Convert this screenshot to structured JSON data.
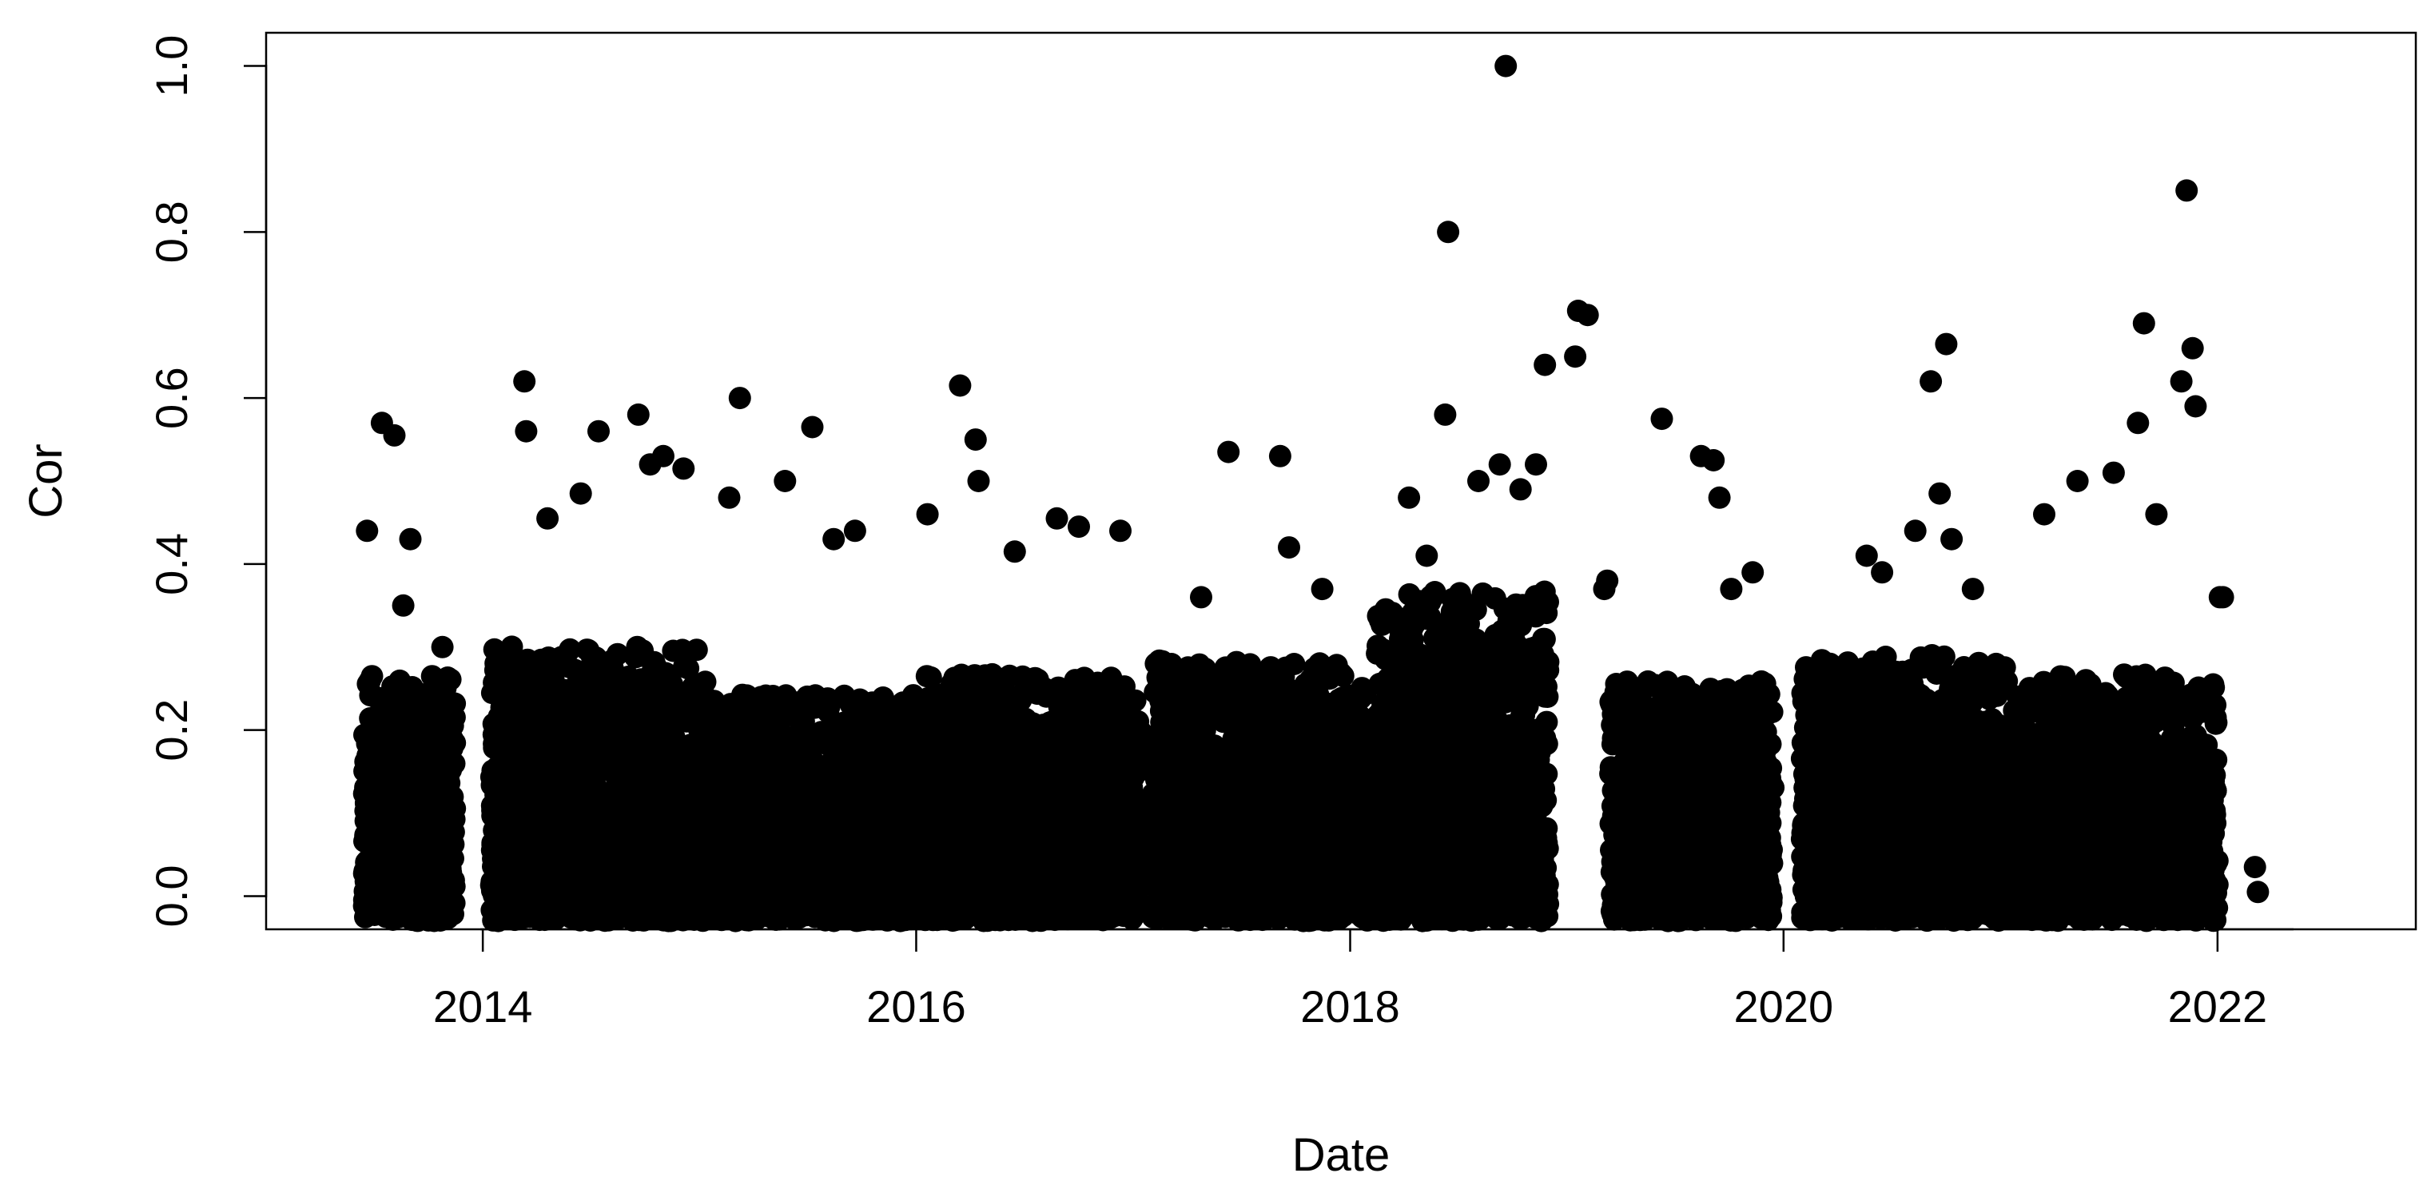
{
  "chart_data": {
    "type": "scatter",
    "title": "",
    "xlabel": "Date",
    "ylabel": "Cor",
    "x_axis_type": "date",
    "xlim": [
      "2013-01-01",
      "2022-12-01"
    ],
    "ylim": [
      -0.04,
      1.04
    ],
    "x_ticks": [
      "2014-01-01",
      "2016-01-01",
      "2018-01-01",
      "2020-01-01",
      "2022-01-01"
    ],
    "x_tick_labels": [
      "2014",
      "2016",
      "2018",
      "2020",
      "2022"
    ],
    "y_ticks": [
      0.0,
      0.2,
      0.4,
      0.6,
      0.8,
      1.0
    ],
    "y_tick_labels": [
      "0.0",
      "0.2",
      "0.4",
      "0.6",
      "0.8",
      "1.0"
    ],
    "grid": false,
    "legend": "none",
    "marker": "filled-circle",
    "color": "#000000",
    "series": [
      {
        "x": [
          "2013-07-15",
          "2013-08-05",
          "2013-08-20",
          "2013-09-01",
          "2013-06-20",
          "2013-10-25",
          "2014-03-12",
          "2014-03-15",
          "2014-04-20",
          "2014-06-15",
          "2014-07-15",
          "2014-09-20",
          "2014-10-10",
          "2014-11-01",
          "2014-12-05",
          "2015-02-20",
          "2015-03-10",
          "2015-05-25",
          "2015-07-10",
          "2015-08-15",
          "2015-09-20",
          "2016-01-20",
          "2016-03-15",
          "2016-04-10",
          "2016-04-15",
          "2016-06-15",
          "2016-08-25",
          "2016-10-01",
          "2016-12-10",
          "2017-04-25",
          "2017-06-10",
          "2017-09-05",
          "2017-09-20",
          "2017-11-15",
          "2018-04-10",
          "2018-05-10",
          "2018-06-10",
          "2018-06-15",
          "2018-08-05",
          "2018-09-10",
          "2018-09-20",
          "2018-10-15",
          "2018-11-10",
          "2018-11-25",
          "2019-01-15",
          "2019-01-20",
          "2019-02-05",
          "2019-03-05",
          "2019-03-10",
          "2019-06-10",
          "2019-08-15",
          "2019-09-05",
          "2019-09-15",
          "2019-10-05",
          "2019-11-10",
          "2020-05-20",
          "2020-06-15",
          "2020-08-10",
          "2020-09-05",
          "2020-09-20",
          "2020-10-01",
          "2020-10-10",
          "2020-11-15",
          "2021-03-15",
          "2021-05-10",
          "2021-07-10",
          "2021-08-20",
          "2021-08-30",
          "2021-09-20",
          "2021-11-01",
          "2021-11-10",
          "2021-11-20",
          "2021-11-25",
          "2022-01-05",
          "2022-01-10",
          "2022-03-05",
          "2022-03-10"
        ],
        "y": [
          0.57,
          0.555,
          0.35,
          0.43,
          0.44,
          0.3,
          0.62,
          0.56,
          0.455,
          0.485,
          0.56,
          0.58,
          0.52,
          0.53,
          0.515,
          0.48,
          0.6,
          0.5,
          0.565,
          0.43,
          0.44,
          0.46,
          0.615,
          0.55,
          0.5,
          0.415,
          0.455,
          0.445,
          0.44,
          0.36,
          0.535,
          0.53,
          0.42,
          0.37,
          0.48,
          0.41,
          0.58,
          0.8,
          0.5,
          0.52,
          1.0,
          0.49,
          0.52,
          0.64,
          0.65,
          0.705,
          0.7,
          0.37,
          0.38,
          0.575,
          0.53,
          0.525,
          0.48,
          0.37,
          0.39,
          0.41,
          0.39,
          0.44,
          0.62,
          0.485,
          0.665,
          0.43,
          0.37,
          0.46,
          0.5,
          0.51,
          0.57,
          0.69,
          0.46,
          0.62,
          0.85,
          0.66,
          0.59,
          0.36,
          0.36,
          0.035,
          0.005
        ]
      }
    ],
    "density_clusters": [
      {
        "x_range": [
          "2013-06-15",
          "2013-11-15"
        ],
        "y_range": [
          -0.03,
          0.33
        ]
      },
      {
        "x_range": [
          "2014-01-15",
          "2015-01-15"
        ],
        "y_range": [
          -0.03,
          0.37
        ]
      },
      {
        "x_range": [
          "2015-01-15",
          "2016-01-01"
        ],
        "y_range": [
          -0.03,
          0.3
        ]
      },
      {
        "x_range": [
          "2016-01-15",
          "2017-01-15"
        ],
        "y_range": [
          -0.03,
          0.33
        ]
      },
      {
        "x_range": [
          "2017-02-01",
          "2018-02-01"
        ],
        "y_range": [
          -0.03,
          0.35
        ]
      },
      {
        "x_range": [
          "2018-02-15",
          "2018-12-01"
        ],
        "y_range": [
          -0.03,
          0.45
        ]
      },
      {
        "x_range": [
          "2019-03-15",
          "2019-12-15"
        ],
        "y_range": [
          -0.03,
          0.32
        ]
      },
      {
        "x_range": [
          "2020-02-01",
          "2021-01-15"
        ],
        "y_range": [
          -0.03,
          0.36
        ]
      },
      {
        "x_range": [
          "2021-01-15",
          "2022-01-01"
        ],
        "y_range": [
          -0.03,
          0.33
        ]
      }
    ]
  }
}
